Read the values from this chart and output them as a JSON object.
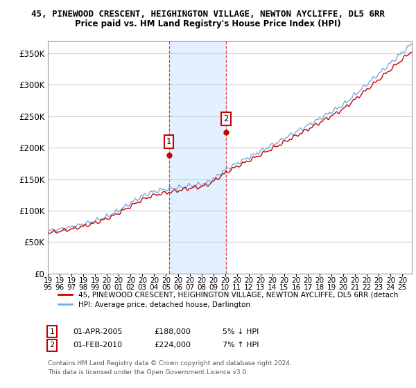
{
  "title_line1": "45, PINEWOOD CRESCENT, HEIGHINGTON VILLAGE, NEWTON AYCLIFFE, DL5 6RR",
  "title_line2": "Price paid vs. HM Land Registry's House Price Index (HPI)",
  "ylabel_ticks": [
    "£0",
    "£50K",
    "£100K",
    "£150K",
    "£200K",
    "£250K",
    "£300K",
    "£350K"
  ],
  "ylabel_values": [
    0,
    50000,
    100000,
    150000,
    200000,
    250000,
    300000,
    350000
  ],
  "ylim": [
    0,
    370000
  ],
  "xlim_start": 1995.0,
  "xlim_end": 2025.8,
  "x_tick_years": [
    1995,
    1996,
    1997,
    1998,
    1999,
    2000,
    2001,
    2002,
    2003,
    2004,
    2005,
    2006,
    2007,
    2008,
    2009,
    2010,
    2011,
    2012,
    2013,
    2014,
    2015,
    2016,
    2017,
    2018,
    2019,
    2020,
    2021,
    2022,
    2023,
    2024,
    2025
  ],
  "sale1_x": 2005.25,
  "sale1_y": 188000,
  "sale1_label": "1",
  "sale2_x": 2010.08,
  "sale2_y": 224000,
  "sale2_label": "2",
  "vline1_x": 2005.25,
  "vline2_x": 2010.08,
  "vline_color": "#cc0000",
  "hpi_color": "#7aaadd",
  "price_color": "#cc0000",
  "bg_color": "#ffffff",
  "plot_bg_color": "#ffffff",
  "grid_color": "#cccccc",
  "shaded_region_color": "#ddeeff",
  "legend_label1": "45, PINEWOOD CRESCENT, HEIGHINGTON VILLAGE, NEWTON AYCLIFFE, DL5 6RR (detach",
  "legend_label2": "HPI: Average price, detached house, Darlington",
  "annotation1_date": "01-APR-2005",
  "annotation1_price": "£188,000",
  "annotation1_hpi": "5% ↓ HPI",
  "annotation2_date": "01-FEB-2010",
  "annotation2_price": "£224,000",
  "annotation2_hpi": "7% ↑ HPI",
  "footnote_line1": "Contains HM Land Registry data © Crown copyright and database right 2024.",
  "footnote_line2": "This data is licensed under the Open Government Licence v3.0."
}
